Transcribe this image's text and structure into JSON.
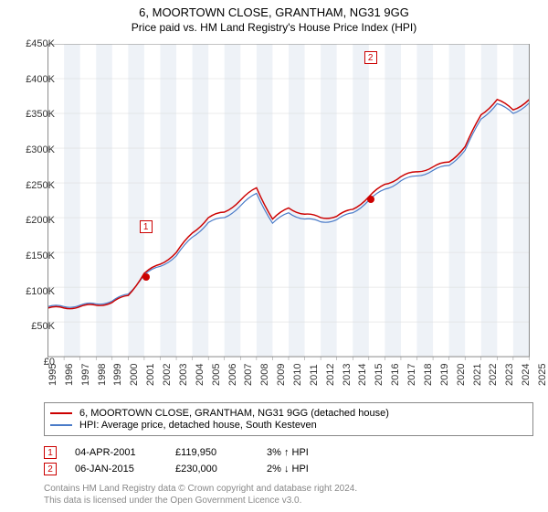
{
  "title": "6, MOORTOWN CLOSE, GRANTHAM, NG31 9GG",
  "subtitle": "Price paid vs. HM Land Registry's House Price Index (HPI)",
  "chart": {
    "type": "line",
    "x_years": [
      1995,
      1996,
      1997,
      1998,
      1999,
      2000,
      2001,
      2002,
      2003,
      2004,
      2005,
      2006,
      2007,
      2008,
      2009,
      2010,
      2011,
      2012,
      2013,
      2014,
      2015,
      2016,
      2017,
      2018,
      2019,
      2020,
      2021,
      2022,
      2023,
      2024,
      2025
    ],
    "ylim": [
      0,
      450000
    ],
    "ytick_step": 50000,
    "y_tick_labels": [
      "£0",
      "£50K",
      "£100K",
      "£150K",
      "£200K",
      "£250K",
      "£300K",
      "£350K",
      "£400K",
      "£450K"
    ],
    "background_color": "#ffffff",
    "alt_band_color": "#eef2f7",
    "grid_color": "#d8d8d8",
    "border_color": "#888888",
    "series": [
      {
        "name": "property",
        "label": "6, MOORTOWN CLOSE, GRANTHAM, NG31 9GG (detached house)",
        "color": "#cc0000",
        "line_width": 1.5,
        "data": [
          70,
          70,
          72,
          74,
          78,
          88,
          120,
          133,
          150,
          178,
          200,
          208,
          225,
          243,
          198,
          214,
          205,
          200,
          202,
          212,
          230,
          248,
          259,
          266,
          273,
          280,
          302,
          348,
          370,
          355,
          370
        ]
      },
      {
        "name": "hpi",
        "label": "HPI: Average price, detached house, South Kesteven",
        "color": "#4a7bc8",
        "line_width": 1.2,
        "data": [
          72,
          72,
          74,
          76,
          80,
          90,
          118,
          130,
          145,
          172,
          193,
          200,
          217,
          235,
          192,
          207,
          198,
          194,
          197,
          207,
          225,
          241,
          253,
          260,
          268,
          275,
          297,
          342,
          364,
          350,
          365
        ]
      }
    ],
    "sale_markers": [
      {
        "num": "1",
        "year": 2001.25,
        "price": 119.95,
        "box_y_offset": -62
      },
      {
        "num": "2",
        "year": 2015.02,
        "price": 230.0,
        "box_y_offset": -162
      }
    ]
  },
  "legend": {
    "items": [
      {
        "color": "#cc0000",
        "label": "6, MOORTOWN CLOSE, GRANTHAM, NG31 9GG (detached house)"
      },
      {
        "color": "#4a7bc8",
        "label": "HPI: Average price, detached house, South Kesteven"
      }
    ]
  },
  "sales": [
    {
      "num": "1",
      "date": "04-APR-2001",
      "price": "£119,950",
      "delta": "3% ↑ HPI",
      "color": "#cc0000"
    },
    {
      "num": "2",
      "date": "06-JAN-2015",
      "price": "£230,000",
      "delta": "2% ↓ HPI",
      "color": "#cc0000"
    }
  ],
  "footer_line1": "Contains HM Land Registry data © Crown copyright and database right 2024.",
  "footer_line2": "This data is licensed under the Open Government Licence v3.0."
}
